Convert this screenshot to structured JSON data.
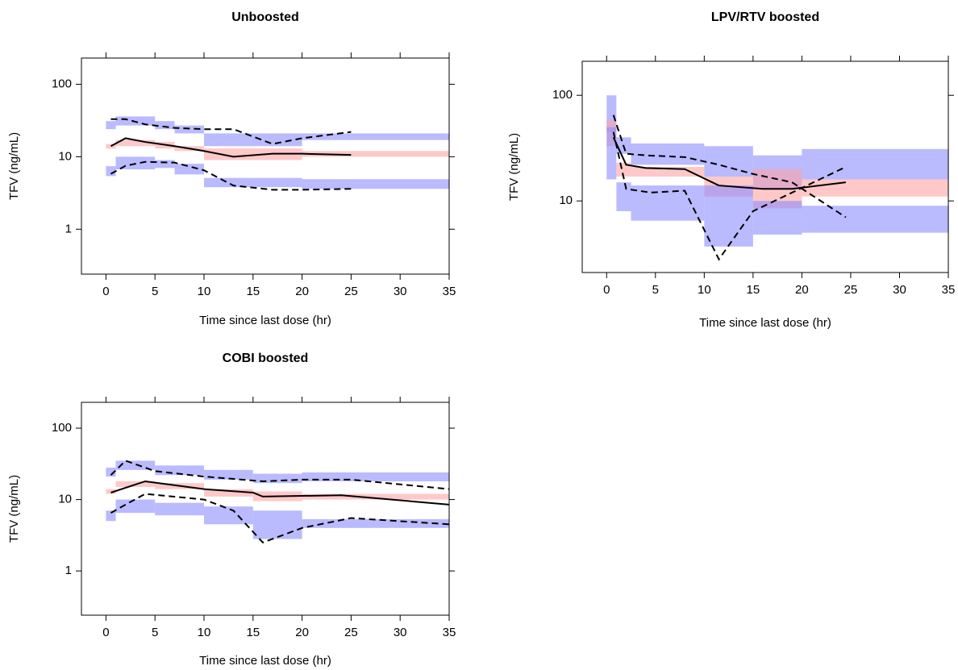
{
  "chart_data": [
    {
      "type": "line",
      "title": "Unboosted",
      "xlabel": "Time since last dose (hr)",
      "ylabel": "TFV (ng/mL)",
      "xlim": [
        -2.5,
        35
      ],
      "ylim": [
        0.24,
        230
      ],
      "log_y": true,
      "xticks": [
        0,
        5,
        10,
        15,
        20,
        25,
        30,
        35
      ],
      "yticks": [
        1,
        10,
        100
      ],
      "bands": [
        {
          "color": "#8c8cff",
          "bins": [
            0,
            1,
            5,
            7,
            10,
            20,
            35
          ],
          "lower": [
            24,
            27,
            24,
            21,
            14,
            17
          ],
          "upper": [
            31,
            36,
            31,
            27,
            21,
            21
          ]
        },
        {
          "color": "#ffa3a3",
          "bins": [
            0,
            1,
            5,
            7,
            10,
            20,
            35
          ],
          "lower": [
            13,
            14,
            13,
            12,
            9,
            10
          ],
          "upper": [
            15,
            17,
            16,
            14,
            13,
            12
          ]
        },
        {
          "color": "#8c8cff",
          "bins": [
            0,
            1,
            5,
            7,
            10,
            20,
            35
          ],
          "lower": [
            5.4,
            6.7,
            7,
            5.7,
            3.8,
            3.6
          ],
          "upper": [
            7.4,
            10,
            9,
            8,
            5.1,
            4.9
          ]
        }
      ],
      "series": [
        {
          "style": "solid",
          "color": "#000000",
          "x": [
            0.5,
            2,
            4,
            7,
            10,
            13,
            17,
            20,
            25
          ],
          "values": [
            14,
            18,
            16,
            14,
            12,
            10,
            11,
            11,
            10.6
          ]
        },
        {
          "style": "dashed",
          "color": "#000000",
          "x": [
            0.5,
            2,
            4,
            7,
            10,
            13,
            17,
            20,
            25
          ],
          "values": [
            33,
            33,
            28,
            25,
            24,
            24,
            15,
            18,
            22
          ]
        },
        {
          "style": "dashed",
          "color": "#000000",
          "x": [
            0.5,
            2,
            4,
            7,
            10,
            13,
            17,
            20,
            25
          ],
          "values": [
            5.8,
            7.5,
            8.5,
            8.3,
            6.5,
            4,
            3.5,
            3.5,
            3.6
          ]
        }
      ]
    },
    {
      "type": "line",
      "title": "LPV/RTV boosted",
      "xlabel": "Time since last dose (hr)",
      "ylabel": "TFV (ng/mL)",
      "xlim": [
        -2.5,
        35
      ],
      "ylim": [
        2.1,
        210
      ],
      "log_y": true,
      "xticks": [
        0,
        5,
        10,
        15,
        20,
        25,
        30,
        35
      ],
      "yticks": [
        10,
        100
      ],
      "bands": [
        {
          "color": "#8c8cff",
          "bins": [
            0,
            1,
            2.5,
            10,
            15,
            20,
            35
          ],
          "lower": [
            45,
            28,
            22,
            17,
            13,
            16
          ],
          "upper": [
            100,
            40,
            35,
            33,
            27,
            31
          ]
        },
        {
          "color": "#ffa3a3",
          "bins": [
            0,
            1,
            2.5,
            10,
            15,
            20,
            35
          ],
          "lower": [
            33,
            17,
            17,
            11,
            8.5,
            11
          ],
          "upper": [
            58,
            23,
            21,
            17,
            20,
            16
          ]
        },
        {
          "color": "#8c8cff",
          "bins": [
            0,
            1,
            2.5,
            10,
            15,
            20,
            35
          ],
          "lower": [
            16,
            8,
            6.5,
            3.7,
            4.8,
            5
          ],
          "upper": [
            50,
            15,
            14,
            14,
            10,
            9
          ]
        }
      ],
      "series": [
        {
          "style": "solid",
          "color": "#000000",
          "x": [
            0.7,
            2,
            4,
            8,
            11.5,
            16,
            19,
            24.5
          ],
          "values": [
            40,
            22,
            20.5,
            20,
            14,
            13,
            13,
            15
          ]
        },
        {
          "style": "dashed",
          "color": "#000000",
          "x": [
            0.7,
            2,
            4,
            8,
            11.5,
            15,
            19,
            24.5
          ],
          "values": [
            65,
            28,
            27,
            26,
            22,
            18,
            15,
            7
          ]
        },
        {
          "style": "dashed",
          "color": "#000000",
          "x": [
            0.7,
            2,
            4.5,
            8,
            11.5,
            15,
            19,
            24.5
          ],
          "values": [
            45,
            13,
            12,
            12.5,
            2.8,
            8,
            12,
            21
          ]
        }
      ]
    },
    {
      "type": "line",
      "title": "COBI boosted",
      "xlabel": "Time since last dose (hr)",
      "ylabel": "TFV (ng/mL)",
      "xlim": [
        -2.5,
        35
      ],
      "ylim": [
        0.24,
        230
      ],
      "log_y": true,
      "xticks": [
        0,
        5,
        10,
        15,
        20,
        25,
        30,
        35
      ],
      "yticks": [
        1,
        10,
        100
      ],
      "bands": [
        {
          "color": "#8c8cff",
          "bins": [
            0,
            1,
            5,
            10,
            15,
            20,
            35
          ],
          "lower": [
            21,
            26,
            22,
            19,
            17,
            18
          ],
          "upper": [
            28,
            35,
            30,
            26,
            23,
            24
          ]
        },
        {
          "color": "#ffa3a3",
          "bins": [
            0,
            1,
            5,
            10,
            15,
            20,
            35
          ],
          "lower": [
            12,
            15,
            14,
            11,
            9.5,
            10
          ],
          "upper": [
            14,
            18,
            17,
            14,
            13,
            12
          ]
        },
        {
          "color": "#8c8cff",
          "bins": [
            0,
            1,
            5,
            10,
            15,
            20,
            35
          ],
          "lower": [
            5,
            6.5,
            6,
            4.5,
            2.8,
            4
          ],
          "upper": [
            7,
            10,
            9,
            8,
            7,
            5.3
          ]
        }
      ],
      "series": [
        {
          "style": "solid",
          "color": "#000000",
          "x": [
            0.5,
            4,
            10,
            15,
            16,
            24,
            35
          ],
          "values": [
            12.5,
            18,
            14,
            12.5,
            11,
            11.5,
            8.5
          ]
        },
        {
          "style": "dashed",
          "color": "#000000",
          "x": [
            0.5,
            2,
            5,
            10,
            16,
            20,
            25,
            35
          ],
          "values": [
            22,
            35,
            25,
            21,
            18,
            19,
            19,
            14
          ]
        },
        {
          "style": "dashed",
          "color": "#000000",
          "x": [
            0.5,
            2,
            4,
            10,
            13,
            16,
            20,
            25,
            35
          ],
          "values": [
            6.5,
            8.5,
            12,
            10,
            7,
            2.5,
            4,
            5.5,
            4.5
          ]
        }
      ]
    }
  ]
}
